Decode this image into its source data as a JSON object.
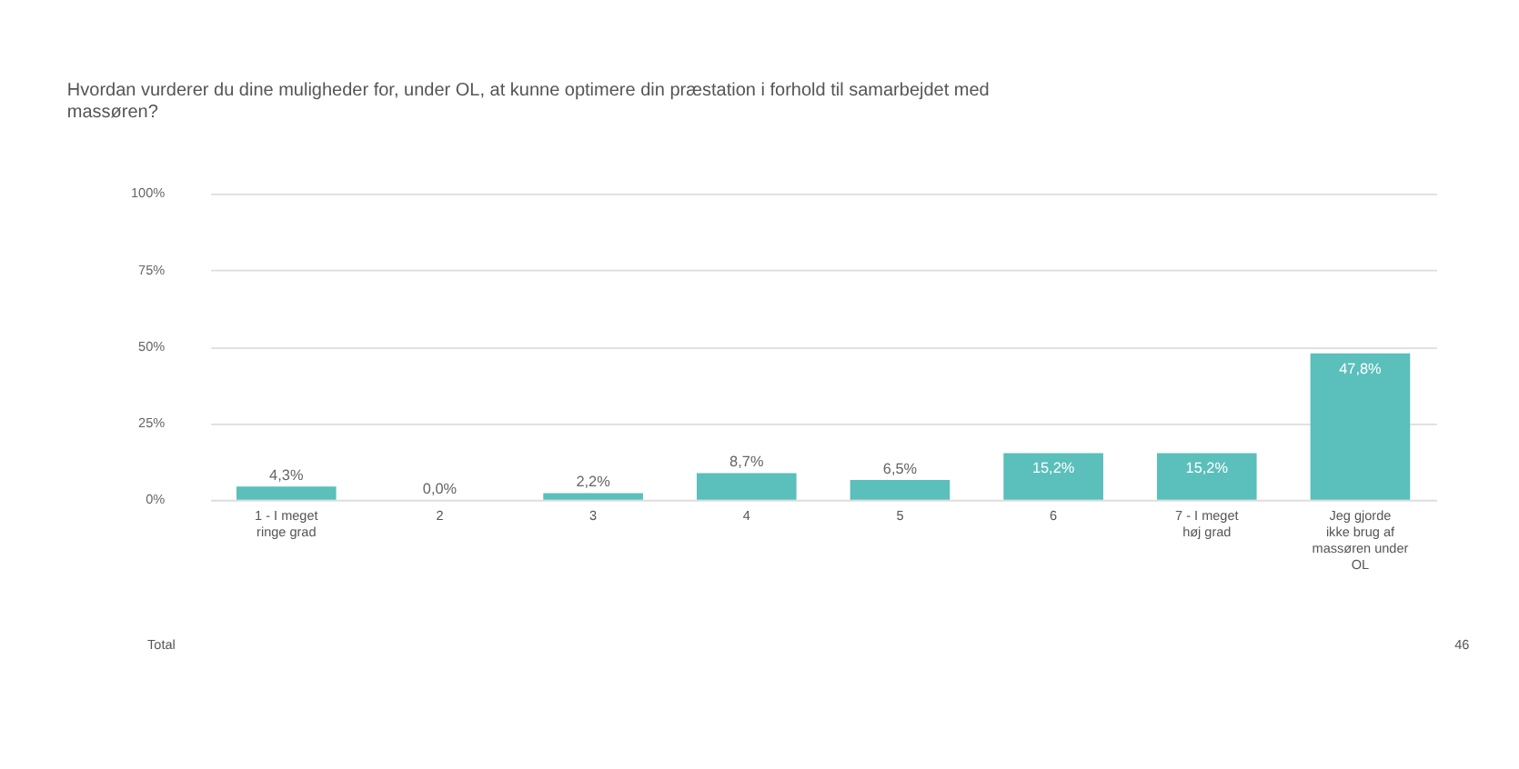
{
  "chart_data": {
    "type": "bar",
    "title": "Hvordan vurderer du dine muligheder for, under OL, at kunne optimere din præstation i forhold til samarbejdet med massøren?",
    "categories": [
      "1 - I meget ringe grad",
      "2",
      "3",
      "4",
      "5",
      "6",
      "7 - I meget høj grad",
      "Jeg gjorde ikke brug af massøren under OL"
    ],
    "values": [
      4.3,
      0.0,
      2.2,
      8.7,
      6.5,
      15.2,
      15.2,
      47.8
    ],
    "value_labels": [
      "4,3%",
      "0,0%",
      "2,2%",
      "8,7%",
      "6,5%",
      "15,2%",
      "15,2%",
      "47,8%"
    ],
    "color": "#5bbfbb",
    "ylim": [
      0,
      100
    ],
    "yticks": [
      {
        "value": 0,
        "label": "0%"
      },
      {
        "value": 25,
        "label": "25%"
      },
      {
        "value": 50,
        "label": "50%"
      },
      {
        "value": 75,
        "label": "75%"
      },
      {
        "value": 100,
        "label": "100%"
      }
    ],
    "grid": "y",
    "annotations": [
      "Total",
      "46"
    ]
  }
}
